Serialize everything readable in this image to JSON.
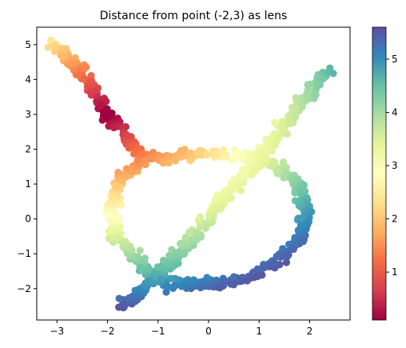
{
  "chart_data": {
    "type": "scatter",
    "title": "Distance from point (-2,3) as lens",
    "xlabel": "",
    "ylabel": "",
    "xlim": [
      -3.4,
      2.8
    ],
    "ylim": [
      -2.9,
      5.5
    ],
    "x_ticks": [
      -3,
      -2,
      -1,
      0,
      1,
      2
    ],
    "y_ticks": [
      -2,
      -1,
      0,
      1,
      2,
      3,
      4,
      5
    ],
    "grid": false,
    "colormap": "Spectral",
    "colorbar": {
      "range": [
        0.1,
        5.6
      ],
      "ticks": [
        1,
        2,
        3,
        4,
        5
      ],
      "stops": [
        "#9e0142",
        "#d53e4f",
        "#f46d43",
        "#fdae61",
        "#fee08b",
        "#ffffbf",
        "#e6f598",
        "#abdda4",
        "#66c2a5",
        "#3288bd",
        "#5e4fa2"
      ]
    },
    "segments": [
      {
        "name": "",
        "points": [
          [
            -3.1,
            5.05
          ],
          [
            -2.6,
            4.4
          ],
          [
            -2.0,
            3.0
          ],
          [
            -1.5,
            2.1
          ],
          [
            -1.2,
            1.8
          ]
        ]
      },
      {
        "name": "",
        "points": [
          [
            -1.2,
            1.8
          ],
          [
            -0.8,
            1.75
          ],
          [
            -0.2,
            1.9
          ],
          [
            0.4,
            1.85
          ],
          [
            1.0,
            1.75
          ]
        ]
      },
      {
        "name": "",
        "points": [
          [
            1.0,
            1.75
          ],
          [
            1.4,
            1.5
          ],
          [
            1.8,
            0.9
          ],
          [
            1.95,
            0.2
          ],
          [
            1.8,
            -0.6
          ]
        ]
      },
      {
        "name": "",
        "points": [
          [
            1.8,
            -0.6
          ],
          [
            1.4,
            -1.2
          ],
          [
            0.8,
            -1.7
          ],
          [
            0.2,
            -1.85
          ],
          [
            -0.3,
            -1.85
          ]
        ]
      },
      {
        "name": "",
        "points": [
          [
            -0.3,
            -1.85
          ],
          [
            -1.0,
            -1.8
          ],
          [
            -1.4,
            -1.2
          ],
          [
            -1.85,
            -0.5
          ],
          [
            -1.9,
            0.3
          ]
        ]
      },
      {
        "name": "",
        "points": [
          [
            -1.9,
            0.3
          ],
          [
            -1.8,
            1.0
          ],
          [
            -1.5,
            1.45
          ],
          [
            -1.2,
            1.8
          ]
        ]
      },
      {
        "name": "",
        "points": [
          [
            -1.7,
            -2.5
          ],
          [
            -1.3,
            -2.0
          ],
          [
            -0.6,
            -1.0
          ],
          [
            0.0,
            0.0
          ],
          [
            0.6,
            1.1
          ],
          [
            1.1,
            1.9
          ],
          [
            1.6,
            2.9
          ],
          [
            2.0,
            3.6
          ],
          [
            2.4,
            4.3
          ]
        ]
      }
    ],
    "points_per_unit": 44,
    "jitter": 0.07
  }
}
